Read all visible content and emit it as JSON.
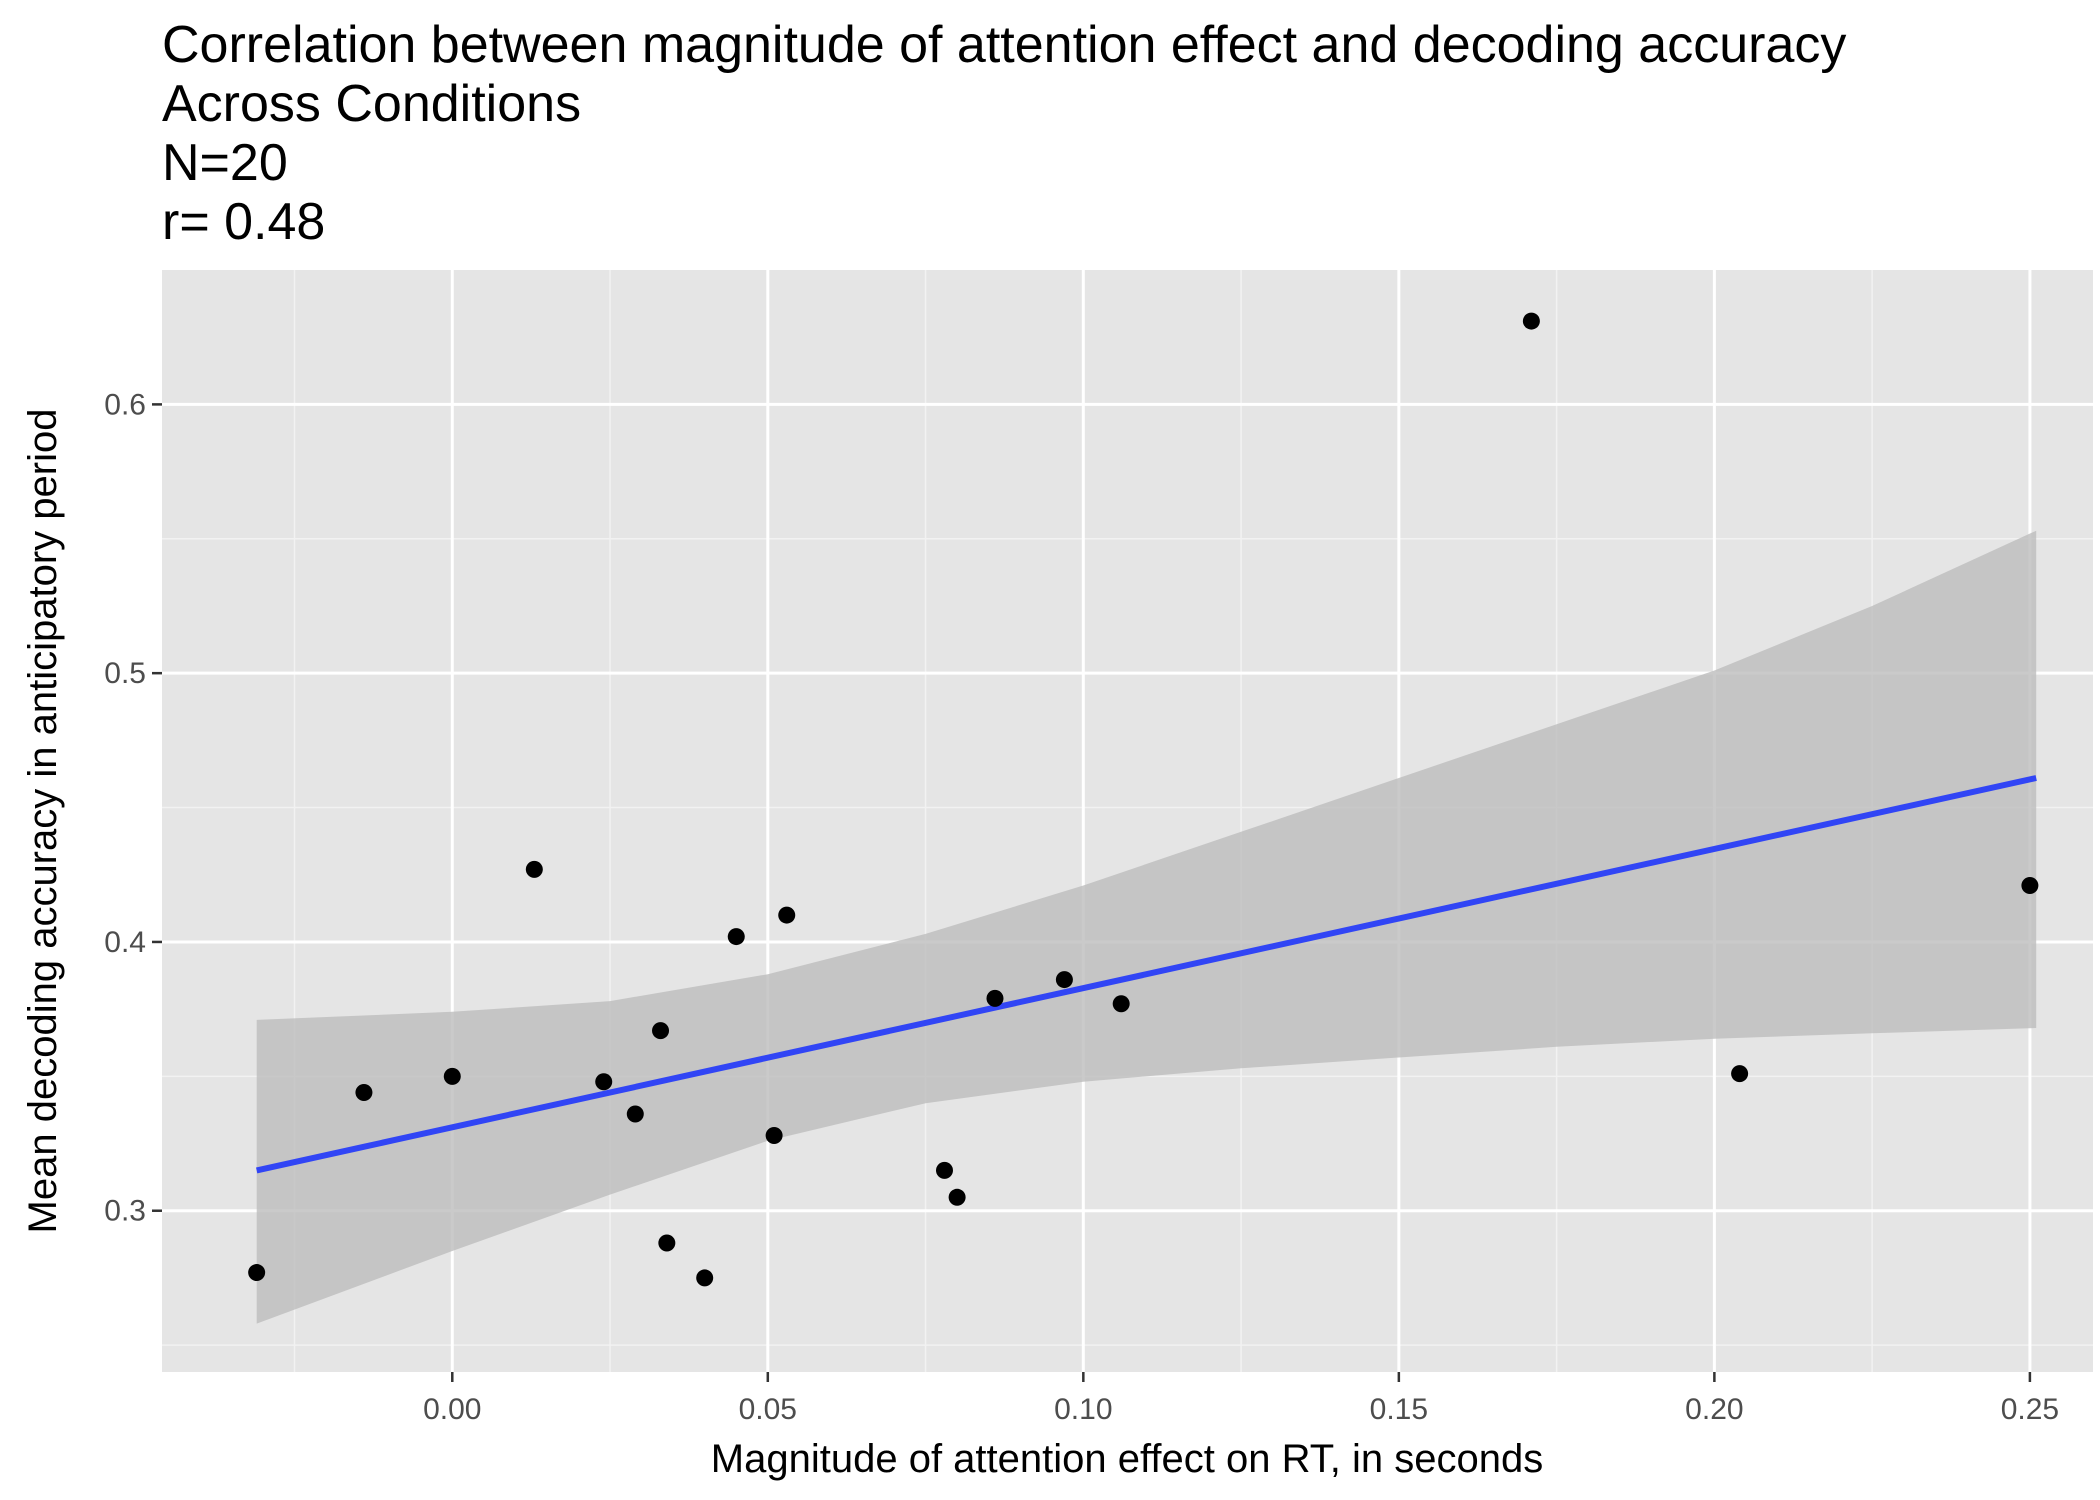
{
  "chart_data": {
    "type": "scatter",
    "title_lines": [
      "Correlation between magnitude of attention effect and decoding accuracy",
      "Across Conditions",
      "N=20",
      "r= 0.48"
    ],
    "xlabel": "Magnitude of attention effect on RT, in seconds",
    "ylabel": "Mean decoding accuracy in anticipatory period",
    "xlim": [
      -0.046,
      0.26
    ],
    "ylim": [
      0.24,
      0.65
    ],
    "x_ticks": [
      {
        "value": 0.0,
        "label": "0.00"
      },
      {
        "value": 0.05,
        "label": "0.05"
      },
      {
        "value": 0.1,
        "label": "0.10"
      },
      {
        "value": 0.15,
        "label": "0.15"
      },
      {
        "value": 0.2,
        "label": "0.20"
      },
      {
        "value": 0.25,
        "label": "0.25"
      }
    ],
    "x_minor_ticks": [
      -0.025,
      0.025,
      0.075,
      0.125,
      0.175,
      0.225
    ],
    "y_ticks": [
      {
        "value": 0.3,
        "label": "0.3"
      },
      {
        "value": 0.4,
        "label": "0.4"
      },
      {
        "value": 0.5,
        "label": "0.5"
      },
      {
        "value": 0.6,
        "label": "0.6"
      }
    ],
    "y_minor_ticks": [
      0.25,
      0.35,
      0.45,
      0.55
    ],
    "grid": true,
    "points": [
      {
        "x": -0.031,
        "y": 0.277
      },
      {
        "x": -0.014,
        "y": 0.344
      },
      {
        "x": 0.0,
        "y": 0.35
      },
      {
        "x": 0.013,
        "y": 0.427
      },
      {
        "x": 0.024,
        "y": 0.348
      },
      {
        "x": 0.029,
        "y": 0.336
      },
      {
        "x": 0.033,
        "y": 0.367
      },
      {
        "x": 0.034,
        "y": 0.288
      },
      {
        "x": 0.04,
        "y": 0.275
      },
      {
        "x": 0.045,
        "y": 0.402
      },
      {
        "x": 0.051,
        "y": 0.328
      },
      {
        "x": 0.053,
        "y": 0.41
      },
      {
        "x": 0.078,
        "y": 0.315
      },
      {
        "x": 0.08,
        "y": 0.305
      },
      {
        "x": 0.086,
        "y": 0.379
      },
      {
        "x": 0.097,
        "y": 0.386
      },
      {
        "x": 0.106,
        "y": 0.377
      },
      {
        "x": 0.171,
        "y": 0.631
      },
      {
        "x": 0.204,
        "y": 0.351
      },
      {
        "x": 0.25,
        "y": 0.421
      }
    ],
    "fit_line": {
      "x": [
        -0.031,
        0.251
      ],
      "y": [
        0.315,
        0.461
      ]
    },
    "confidence_band": {
      "x": [
        -0.031,
        0.0,
        0.025,
        0.05,
        0.075,
        0.1,
        0.125,
        0.15,
        0.175,
        0.2,
        0.225,
        0.251
      ],
      "lower": [
        0.258,
        0.285,
        0.306,
        0.326,
        0.34,
        0.348,
        0.353,
        0.357,
        0.361,
        0.364,
        0.366,
        0.368
      ],
      "upper": [
        0.371,
        0.374,
        0.378,
        0.388,
        0.403,
        0.421,
        0.441,
        0.461,
        0.481,
        0.501,
        0.525,
        0.553
      ]
    },
    "colors": {
      "panel_background": "#e5e5e5",
      "grid_major": "#ffffff",
      "grid_minor": "#f2f2f2",
      "points": "#000000",
      "fit_line": "#3145f5",
      "band": "#bdbdbd"
    }
  }
}
